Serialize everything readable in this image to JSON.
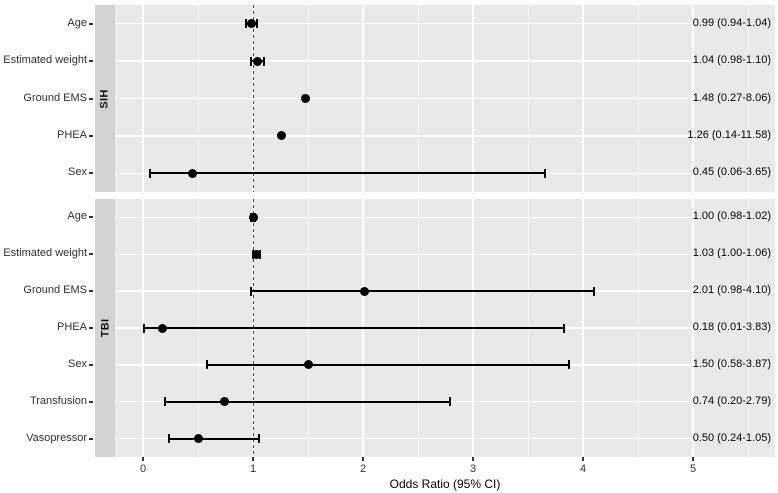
{
  "colors": {
    "panel_bg": "#e9e9e9",
    "strip_bg": "#d3d3d3",
    "grid_major": "#ffffff",
    "grid_minor": "rgba(255,255,255,0.6)",
    "marker": "#000000",
    "reference_line": "#4b4b4b",
    "axis_text": "#333333"
  },
  "chart_data": {
    "type": "scatter",
    "subtype": "forest_plot_odds_ratios",
    "title": "",
    "xlabel": "Odds Ratio (95% CI)",
    "ylabel": "",
    "x_ticks": [
      0,
      1,
      2,
      3,
      4,
      5
    ],
    "x_minor_ticks": [
      0.5,
      1.5,
      2.5,
      3.5,
      4.5,
      5.5
    ],
    "xlim": [
      -0.25,
      5.73
    ],
    "reference_line_x": 1,
    "grid": true,
    "legend": false,
    "panels": [
      {
        "facet_label": "SIH",
        "rows": [
          {
            "label": "Age",
            "or": 0.99,
            "ci_low": 0.94,
            "ci_high": 1.04,
            "ci_drawn": true,
            "annotation": "0.99 (0.94-1.04)"
          },
          {
            "label": "Estimated weight",
            "or": 1.04,
            "ci_low": 0.98,
            "ci_high": 1.1,
            "ci_drawn": true,
            "annotation": "1.04 (0.98-1.10)"
          },
          {
            "label": "Ground EMS",
            "or": 1.48,
            "ci_low": 0.27,
            "ci_high": 8.06,
            "ci_drawn": false,
            "annotation": "1.48 (0.27-8.06)"
          },
          {
            "label": "PHEA",
            "or": 1.26,
            "ci_low": 0.14,
            "ci_high": 11.58,
            "ci_drawn": false,
            "annotation": "1.26 (0.14-11.58)"
          },
          {
            "label": "Sex",
            "or": 0.45,
            "ci_low": 0.06,
            "ci_high": 3.65,
            "ci_drawn": true,
            "annotation": "0.45 (0.06-3.65)"
          }
        ]
      },
      {
        "facet_label": "TBI",
        "rows": [
          {
            "label": "Age",
            "or": 1.0,
            "ci_low": 0.98,
            "ci_high": 1.02,
            "ci_drawn": true,
            "annotation": "1.00 (0.98-1.02)"
          },
          {
            "label": "Estimated weight",
            "or": 1.03,
            "ci_low": 1.0,
            "ci_high": 1.06,
            "ci_drawn": true,
            "annotation": "1.03 (1.00-1.06)"
          },
          {
            "label": "Ground EMS",
            "or": 2.01,
            "ci_low": 0.98,
            "ci_high": 4.1,
            "ci_drawn": true,
            "annotation": "2.01 (0.98-4.10)"
          },
          {
            "label": "PHEA",
            "or": 0.18,
            "ci_low": 0.01,
            "ci_high": 3.83,
            "ci_drawn": true,
            "annotation": "0.18 (0.01-3.83)"
          },
          {
            "label": "Sex",
            "or": 1.5,
            "ci_low": 0.58,
            "ci_high": 3.87,
            "ci_drawn": true,
            "annotation": "1.50 (0.58-3.87)"
          },
          {
            "label": "Transfusion",
            "or": 0.74,
            "ci_low": 0.2,
            "ci_high": 2.79,
            "ci_drawn": true,
            "annotation": "0.74 (0.20-2.79)"
          },
          {
            "label": "Vasopressor",
            "or": 0.5,
            "ci_low": 0.24,
            "ci_high": 1.05,
            "ci_drawn": true,
            "annotation": "0.50 (0.24-1.05)"
          }
        ]
      }
    ]
  }
}
